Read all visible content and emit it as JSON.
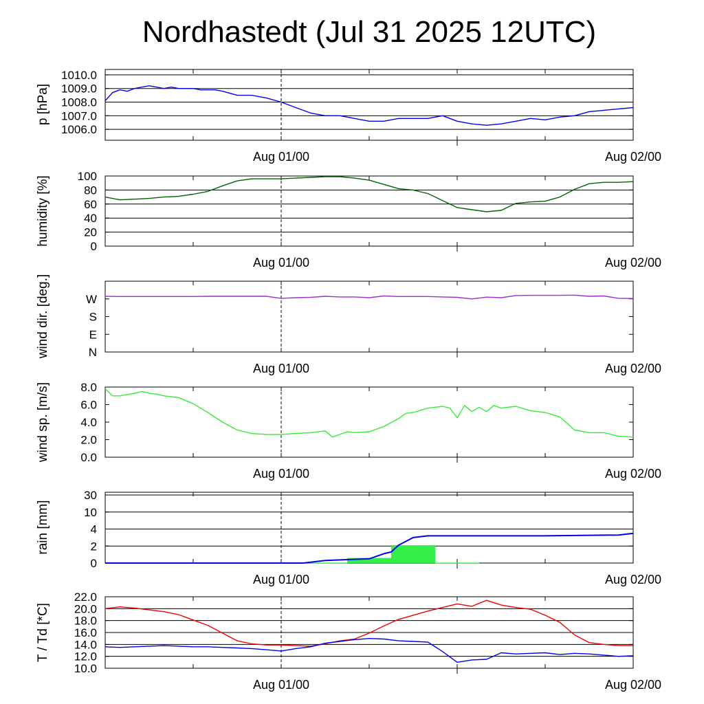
{
  "title": "Nordhastedt (Jul 31 2025 12UTC)",
  "chart_data": [
    {
      "type": "line",
      "ylabel": "p [hPa]",
      "x_ticks": [
        "Aug 01/00",
        "Aug 02/00"
      ],
      "x_range_hours": [
        0,
        36
      ],
      "x_note": "hours from Jul 31 12UTC",
      "ylim": [
        1005.2,
        1010.4
      ],
      "yticks": [
        1006.0,
        1007.0,
        1008.0,
        1009.0,
        1010.0
      ],
      "ytick_labels": [
        "1006.0",
        "1007.0",
        "1008.0",
        "1009.0",
        "1010.0"
      ],
      "grid": true,
      "series": [
        {
          "color": "#0000ee",
          "x": [
            0,
            0.5,
            1,
            1.5,
            2,
            2.5,
            3,
            3.5,
            4,
            4.5,
            5,
            5.5,
            6,
            6.5,
            7,
            7.5,
            8,
            9,
            10,
            11,
            12,
            13,
            14,
            15,
            16,
            17,
            18,
            19,
            20,
            21,
            22,
            23,
            24,
            25,
            26,
            27,
            28,
            29,
            30,
            31,
            32,
            33,
            34,
            35,
            36
          ],
          "y": [
            1008.1,
            1008.7,
            1008.9,
            1008.8,
            1009.0,
            1009.1,
            1009.2,
            1009.1,
            1009.0,
            1009.1,
            1009.0,
            1009.0,
            1009.0,
            1008.9,
            1008.9,
            1008.9,
            1008.8,
            1008.5,
            1008.5,
            1008.3,
            1008.0,
            1007.6,
            1007.2,
            1007.0,
            1007.0,
            1006.8,
            1006.6,
            1006.6,
            1006.8,
            1006.8,
            1006.8,
            1007.0,
            1006.6,
            1006.4,
            1006.3,
            1006.4,
            1006.6,
            1006.8,
            1006.7,
            1006.9,
            1007.0,
            1007.3,
            1007.4,
            1007.5,
            1007.6
          ]
        }
      ]
    },
    {
      "type": "line",
      "ylabel": "humidity [%]",
      "x_ticks": [
        "Aug 01/00",
        "Aug 02/00"
      ],
      "x_range_hours": [
        0,
        36
      ],
      "ylim": [
        0,
        100
      ],
      "yticks": [
        0,
        20,
        40,
        60,
        80,
        100
      ],
      "ytick_labels": [
        "0",
        "20",
        "40",
        "60",
        "80",
        "100"
      ],
      "grid": true,
      "series": [
        {
          "color": "#006400",
          "x": [
            0,
            1,
            2,
            3,
            4,
            5,
            6,
            7,
            8,
            9,
            10,
            11,
            12,
            13,
            14,
            15,
            16,
            17,
            18,
            19,
            20,
            21,
            22,
            23,
            24,
            25,
            26,
            27,
            28,
            29,
            30,
            31,
            32,
            33,
            34,
            35,
            36
          ],
          "y": [
            70,
            66,
            67,
            68,
            70,
            71,
            74,
            78,
            86,
            93,
            96,
            96,
            96,
            97,
            98,
            99,
            99,
            97,
            94,
            88,
            82,
            80,
            75,
            65,
            55,
            52,
            49,
            51,
            61,
            63,
            64,
            70,
            81,
            89,
            91,
            91,
            92
          ]
        }
      ]
    },
    {
      "type": "line",
      "ylabel": "wind dir. [deg.]",
      "x_ticks": [
        "Aug 01/00",
        "Aug 02/00"
      ],
      "x_range_hours": [
        0,
        36
      ],
      "ylim": [
        0,
        360
      ],
      "yticks": [
        0,
        90,
        180,
        270
      ],
      "ytick_labels": [
        "N",
        "E",
        "S",
        "W"
      ],
      "grid": false,
      "series": [
        {
          "color": "#9932cc",
          "x": [
            0,
            1,
            2,
            3,
            4,
            5,
            6,
            7,
            8,
            9,
            10,
            11,
            12,
            13,
            14,
            15,
            16,
            17,
            18,
            19,
            20,
            21,
            22,
            23,
            24,
            25,
            26,
            27,
            28,
            29,
            30,
            31,
            32,
            33,
            34,
            35,
            36
          ],
          "y": [
            283,
            282,
            282,
            282,
            282,
            282,
            282,
            283,
            283,
            283,
            283,
            283,
            273,
            276,
            278,
            283,
            280,
            280,
            276,
            285,
            282,
            282,
            282,
            280,
            278,
            270,
            279,
            276,
            287,
            288,
            288,
            288,
            289,
            283,
            285,
            273,
            272
          ]
        }
      ]
    },
    {
      "type": "line",
      "ylabel": "wind sp. [m/s]",
      "x_ticks": [
        "Aug 01/00",
        "Aug 02/00"
      ],
      "x_range_hours": [
        0,
        36
      ],
      "ylim": [
        0,
        8
      ],
      "yticks": [
        0,
        2,
        4,
        6,
        8
      ],
      "ytick_labels": [
        "0.0",
        "2.0",
        "4.0",
        "6.0",
        "8.0"
      ],
      "grid": false,
      "series": [
        {
          "color": "#33ee33",
          "x": [
            0,
            0.5,
            1,
            2,
            2.5,
            3,
            3.5,
            4,
            5,
            6,
            7,
            8,
            9,
            10,
            11,
            12,
            13,
            14,
            15,
            15.5,
            16,
            16.5,
            17,
            18,
            19,
            20,
            20.5,
            21,
            22,
            23,
            23.5,
            24,
            24.5,
            25,
            25.5,
            26,
            26.5,
            27,
            28,
            29,
            30,
            31,
            32,
            33,
            34,
            35,
            36
          ],
          "y": [
            7.8,
            7.0,
            7.0,
            7.3,
            7.5,
            7.3,
            7.2,
            7.0,
            6.8,
            6.1,
            5.1,
            4.0,
            3.1,
            2.7,
            2.6,
            2.6,
            2.7,
            2.8,
            3.0,
            2.3,
            2.6,
            2.9,
            2.8,
            2.9,
            3.5,
            4.4,
            5.0,
            5.1,
            5.6,
            5.8,
            5.6,
            4.5,
            5.9,
            5.2,
            5.7,
            5.2,
            5.9,
            5.6,
            5.8,
            5.3,
            5.1,
            4.6,
            3.1,
            2.8,
            2.8,
            2.4,
            2.3
          ]
        }
      ]
    },
    {
      "type": "bar",
      "ylabel": "rain [mm]",
      "x_ticks": [
        "Aug 01/00",
        "Aug 02/00"
      ],
      "x_range_hours": [
        0,
        36
      ],
      "ylim": [
        0,
        30
      ],
      "yticks": [
        0,
        2,
        4,
        10,
        30
      ],
      "ytick_labels": [
        "0",
        "2",
        "4",
        "10",
        "30"
      ],
      "grid": true,
      "bars": {
        "color": "#33ee44",
        "x0": [
          13.5,
          16.5,
          19.5,
          22.5
        ],
        "x1": [
          16.5,
          19.5,
          22.5,
          25.5
        ],
        "values": [
          0.05,
          0.6,
          2.1,
          0.05
        ]
      },
      "series": [
        {
          "color": "#0000ee",
          "name": "",
          "x": [
            0,
            13.5,
            15,
            16.5,
            18,
            19,
            19.5,
            20,
            21,
            22,
            23,
            24,
            30,
            35,
            36
          ],
          "y": [
            0,
            0,
            0.3,
            0.4,
            0.5,
            1.1,
            1.3,
            2.1,
            3.0,
            3.2,
            3.2,
            3.2,
            3.2,
            3.3,
            3.5
          ]
        }
      ]
    },
    {
      "type": "line",
      "ylabel": "T / Td [*C]",
      "x_ticks": [
        "Aug 01/00",
        "Aug 02/00"
      ],
      "x_range_hours": [
        0,
        36
      ],
      "ylim": [
        10,
        22
      ],
      "yticks": [
        10,
        12,
        14,
        16,
        18,
        20,
        22
      ],
      "ytick_labels": [
        "10.0",
        "12.0",
        "14.0",
        "16.0",
        "18.0",
        "20.0",
        "22.0"
      ],
      "grid": true,
      "series": [
        {
          "color": "#ee0000",
          "x": [
            0,
            1,
            2,
            3,
            4,
            5,
            6,
            7,
            8,
            9,
            10,
            11,
            12,
            13,
            14,
            15,
            16,
            17,
            18,
            19,
            20,
            21,
            22,
            23,
            24,
            25,
            26,
            27,
            28,
            29,
            30,
            31,
            32,
            33,
            34,
            35,
            36
          ],
          "y": [
            20.0,
            20.3,
            20.1,
            19.8,
            19.5,
            19.0,
            18.1,
            17.2,
            15.9,
            14.6,
            14.1,
            13.9,
            13.9,
            13.8,
            13.7,
            14.1,
            14.6,
            14.9,
            15.9,
            17.1,
            18.2,
            18.9,
            19.6,
            20.2,
            20.8,
            20.4,
            21.4,
            20.6,
            20.2,
            19.9,
            18.9,
            17.7,
            15.6,
            14.3,
            14.0,
            13.8,
            13.8
          ]
        },
        {
          "color": "#0000ee",
          "x": [
            0,
            1,
            2,
            3,
            4,
            5,
            6,
            7,
            8,
            9,
            10,
            11,
            12,
            13,
            14,
            15,
            16,
            17,
            18,
            19,
            20,
            21,
            22,
            23,
            24,
            25,
            26,
            27,
            28,
            29,
            30,
            31,
            32,
            33,
            34,
            35,
            36
          ],
          "y": [
            13.6,
            13.5,
            13.6,
            13.7,
            13.8,
            13.7,
            13.6,
            13.6,
            13.5,
            13.4,
            13.3,
            13.1,
            12.9,
            13.3,
            13.6,
            14.2,
            14.5,
            14.8,
            15.0,
            14.9,
            14.6,
            14.5,
            14.4,
            12.8,
            11.0,
            11.4,
            11.5,
            12.6,
            12.4,
            12.5,
            12.6,
            12.3,
            12.5,
            12.4,
            12.2,
            12.0,
            12.1
          ]
        }
      ]
    }
  ]
}
